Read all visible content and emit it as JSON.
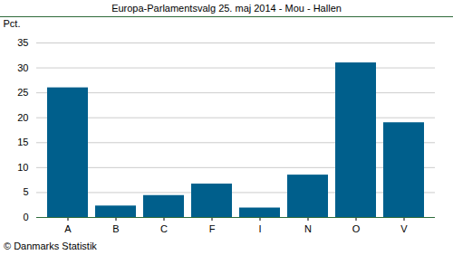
{
  "chart_data": {
    "type": "bar",
    "title": "Europa-Parlamentsvalg 25. maj 2014 - Mou - Hallen",
    "y_label": "Pct.",
    "caption": "© Danmarks Statistik",
    "categories": [
      "A",
      "B",
      "C",
      "F",
      "I",
      "N",
      "O",
      "V"
    ],
    "values": [
      26,
      2.3,
      4.4,
      6.7,
      1.9,
      8.5,
      31,
      19
    ],
    "color": "#005f8c",
    "ylim": [
      0,
      35
    ],
    "yticks": [
      0,
      5,
      10,
      15,
      20,
      25,
      30,
      35
    ],
    "grid": true
  }
}
